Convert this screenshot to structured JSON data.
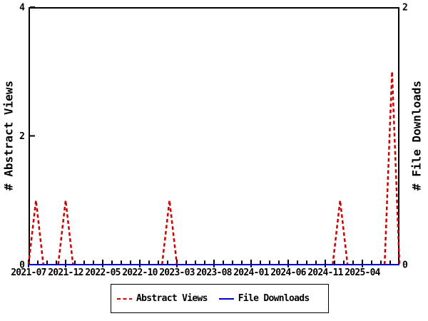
{
  "chart_data": {
    "type": "line",
    "title": "",
    "x_axis": {
      "tick_labels": [
        "2021-07",
        "2021-12",
        "2022-05",
        "2022-10",
        "2023-03",
        "2023-08",
        "2024-01",
        "2024-06",
        "2024-11",
        "2025-04"
      ],
      "tick_month_indices": [
        0,
        5,
        10,
        15,
        20,
        25,
        30,
        35,
        40,
        45
      ],
      "start_month": "2021-07",
      "end_month": "2025-09",
      "minor_ticks_between_majors": 3
    },
    "left_axis": {
      "label": "# Abstract Views",
      "min": 0,
      "max": 4,
      "tick_values": [
        0,
        2,
        4
      ]
    },
    "right_axis": {
      "label": "# File Downloads",
      "min": 0,
      "max": 2,
      "tick_values": [
        0,
        2
      ]
    },
    "series": [
      {
        "name": "Abstract Views",
        "color": "#cc0000",
        "line_style": "dashed",
        "y_axis": "left",
        "values": [
          0,
          1,
          0,
          0,
          0,
          1,
          0,
          0,
          0,
          0,
          0,
          0,
          0,
          0,
          0,
          0,
          0,
          0,
          0,
          1,
          0,
          0,
          0,
          0,
          0,
          0,
          0,
          0,
          0,
          0,
          0,
          0,
          0,
          0,
          0,
          0,
          0,
          0,
          0,
          0,
          0,
          0,
          1,
          0,
          0,
          0,
          0,
          0,
          0,
          3,
          0
        ],
        "points_nonzero": [
          {
            "month": "2021-08",
            "value": 1
          },
          {
            "month": "2021-12",
            "value": 1
          },
          {
            "month": "2023-02",
            "value": 1
          },
          {
            "month": "2025-01",
            "value": 1
          },
          {
            "month": "2025-08",
            "value": 3
          }
        ]
      },
      {
        "name": "File Downloads",
        "color": "#0000cc",
        "line_style": "solid",
        "y_axis": "right",
        "values": [
          0,
          0,
          0,
          0,
          0,
          0,
          0,
          0,
          0,
          0,
          0,
          0,
          0,
          0,
          0,
          0,
          0,
          0,
          0,
          0,
          0,
          0,
          0,
          0,
          0,
          0,
          0,
          0,
          0,
          0,
          0,
          0,
          0,
          0,
          0,
          0,
          0,
          0,
          0,
          0,
          0,
          0,
          0,
          0,
          0,
          0,
          0,
          0,
          0,
          0,
          0
        ],
        "points_nonzero": []
      }
    ],
    "legend": {
      "position": "bottom-center",
      "border": true
    }
  }
}
